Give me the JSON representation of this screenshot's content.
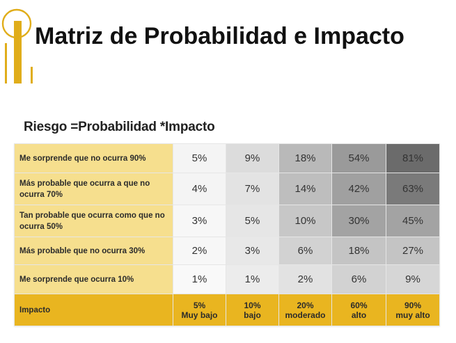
{
  "title": "Matriz de Probabilidad e Impacto",
  "subtitle": "Riesgo =Probabilidad *Impacto",
  "matrix": {
    "rows": [
      {
        "label": "Me sorprende que no ocurra 90%",
        "values": [
          "5%",
          "9%",
          "18%",
          "54%",
          "81%"
        ]
      },
      {
        "label": "Más probable que ocurra a que no ocurra 70%",
        "values": [
          "4%",
          "7%",
          "14%",
          "42%",
          "63%"
        ]
      },
      {
        "label": "Tan probable que ocurra como que no ocurra 50%",
        "values": [
          "3%",
          "5%",
          "10%",
          "30%",
          "45%"
        ]
      },
      {
        "label": "Más probable que no ocurra 30%",
        "values": [
          "2%",
          "3%",
          "6%",
          "18%",
          "27%"
        ]
      },
      {
        "label": "Me sorprende que ocurra 10%",
        "values": [
          "1%",
          "1%",
          "2%",
          "6%",
          "9%"
        ]
      }
    ],
    "impact_label": "Impacto",
    "impact": [
      {
        "pct": "5%",
        "name": "Muy bajo"
      },
      {
        "pct": "10%",
        "name": "bajo"
      },
      {
        "pct": "20%",
        "name": "moderado"
      },
      {
        "pct": "60%",
        "name": "alto"
      },
      {
        "pct": "90%",
        "name": "muy alto"
      }
    ],
    "colors": {
      "row_label_bg": "#f6df8e",
      "impact_bg": "#e9b520",
      "cell_shades": [
        [
          "#f4f4f4",
          "#dcdcdc",
          "#b9b9b9",
          "#9a9a9a",
          "#6b6b6b"
        ],
        [
          "#f4f4f4",
          "#e3e3e3",
          "#bebebe",
          "#a0a0a0",
          "#7a7a7a"
        ],
        [
          "#f7f7f7",
          "#e6e6e6",
          "#c7c7c7",
          "#a3a3a3",
          "#a3a3a3"
        ],
        [
          "#f7f7f7",
          "#e8e8e8",
          "#d2d2d2",
          "#c4c4c4",
          "#c4c4c4"
        ],
        [
          "#f9f9f9",
          "#ececec",
          "#e2e2e2",
          "#d2d2d2",
          "#d6d6d6"
        ]
      ]
    }
  }
}
